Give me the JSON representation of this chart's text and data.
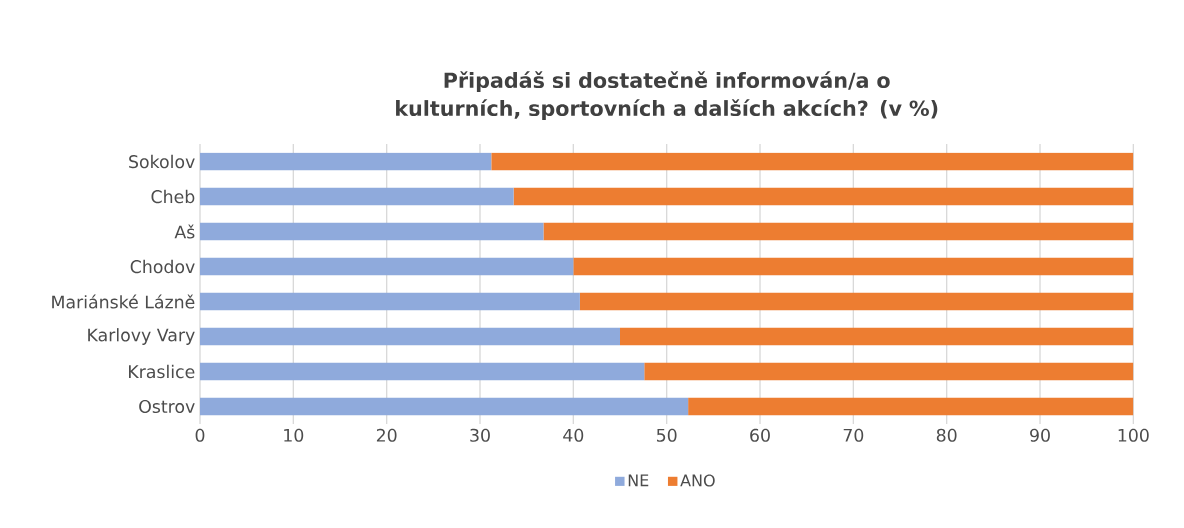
{
  "chart_data": {
    "type": "bar",
    "orientation": "horizontal",
    "stacked": true,
    "title": "Připadáš si dostatečně informován/a o kulturních, sportovních a dalších akcích? (v %)",
    "categories": [
      "Sokolov",
      "Cheb",
      "Aš",
      "Chodov",
      "Mariánské Lázně",
      "Karlovy Vary",
      "Kraslice",
      "Ostrov"
    ],
    "series": [
      {
        "name": "NE",
        "color": "#8faadc",
        "values": [
          31.2,
          33.6,
          36.8,
          40.0,
          40.7,
          45.0,
          47.6,
          52.3
        ]
      },
      {
        "name": "ANO",
        "color": "#ed7d31",
        "values": [
          68.8,
          66.4,
          63.2,
          60.0,
          59.3,
          55.0,
          52.4,
          47.7
        ]
      }
    ],
    "xlim": [
      0,
      100
    ],
    "xticks": [
      0,
      10,
      20,
      30,
      40,
      50,
      60,
      70,
      80,
      90,
      100
    ],
    "grid": "x",
    "legend": "bottom"
  }
}
